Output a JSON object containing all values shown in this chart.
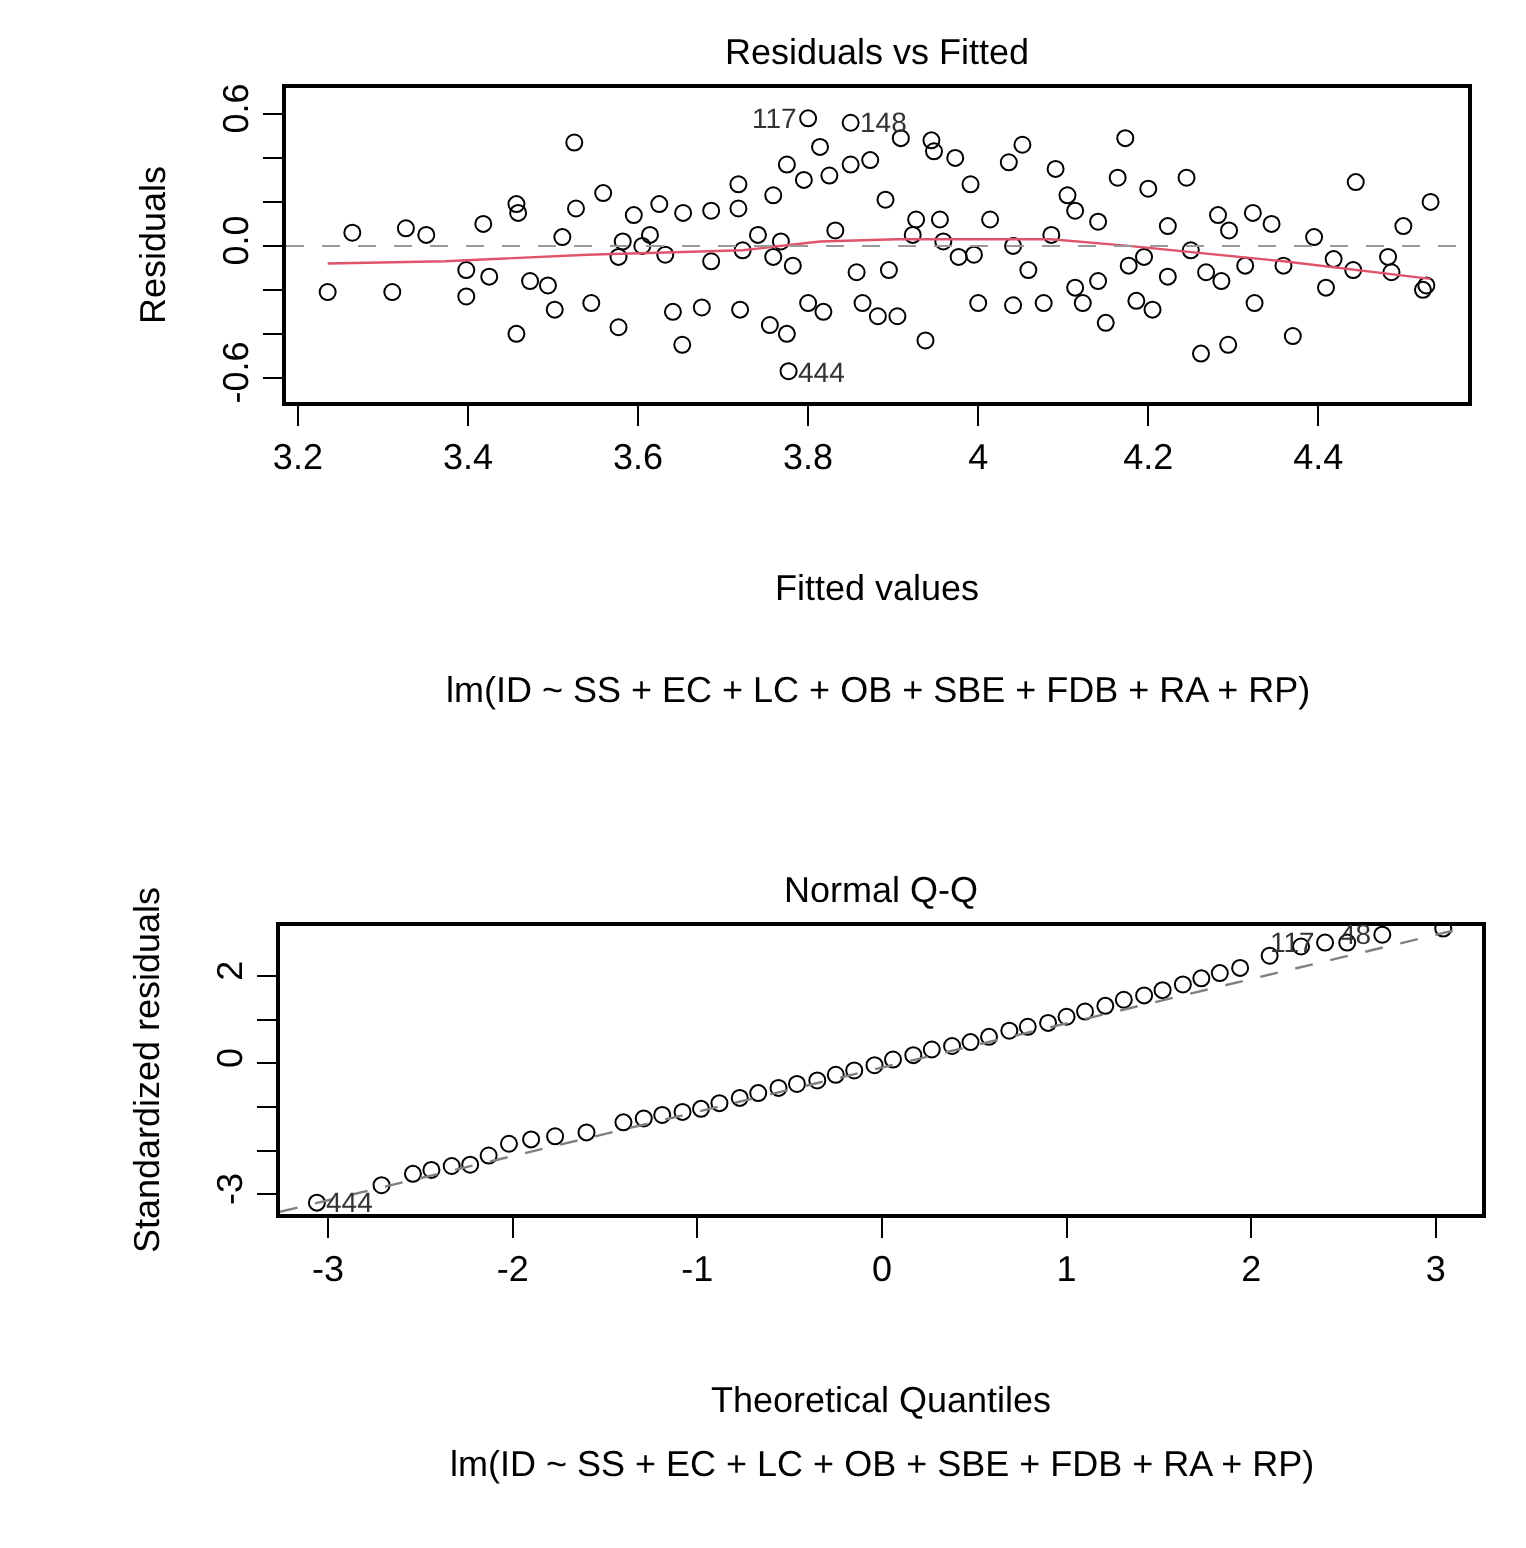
{
  "chart_data": [
    {
      "type": "scatter",
      "title": "Residuals vs Fitted",
      "xlabel": "Fitted values",
      "ylabel": "Residuals",
      "xlim": [
        3.186,
        4.576
      ],
      "ylim": [
        -0.71,
        0.718
      ],
      "xticks": [
        3.2,
        3.4,
        3.6,
        3.8,
        4.0,
        4.2,
        4.4
      ],
      "yticks": [
        {
          "value": -0.6,
          "label": "-0.6"
        },
        {
          "value": -0.4,
          "label": null
        },
        {
          "value": -0.2,
          "label": null
        },
        {
          "value": 0,
          "label": "0.0"
        },
        {
          "value": 0.2,
          "label": null
        },
        {
          "value": 0.4,
          "label": null
        },
        {
          "value": 0.6,
          "label": "0.6"
        }
      ],
      "grid": false,
      "series": [
        {
          "marker": "circle",
          "color": "#000000",
          "x": [
            3.235,
            3.264,
            3.311,
            3.327,
            3.351,
            3.398,
            3.398,
            3.418,
            3.425,
            3.457,
            3.457,
            3.459,
            3.473,
            3.494,
            3.502,
            3.511,
            3.525,
            3.527,
            3.545,
            3.559,
            3.577,
            3.582,
            3.595,
            3.614,
            3.625,
            3.641,
            3.652,
            3.653,
            3.675,
            3.686,
            3.718,
            3.72,
            3.718,
            3.741,
            3.755,
            3.759,
            3.775,
            3.775,
            3.777,
            3.782,
            3.795,
            3.8,
            3.814,
            3.818,
            3.825,
            3.832,
            3.85,
            3.857,
            3.864,
            3.873,
            3.882,
            3.891,
            3.895,
            3.905,
            3.909,
            3.927,
            3.938,
            3.945,
            3.948,
            3.955,
            3.973,
            3.977,
            3.991,
            4.0,
            4.014,
            4.036,
            4.041,
            4.052,
            4.059,
            4.077,
            4.091,
            4.105,
            4.114,
            4.123,
            4.141,
            4.15,
            4.164,
            4.173,
            4.177,
            4.186,
            4.2,
            4.205,
            4.223,
            4.245,
            4.262,
            4.268,
            4.282,
            4.294,
            4.295,
            4.325,
            4.323,
            4.345,
            4.359,
            4.37,
            4.395,
            4.409,
            4.418,
            4.441,
            4.444,
            4.482,
            4.486,
            4.5,
            4.527,
            4.532,
            4.523,
            3.8,
            3.85,
            3.577,
            3.605,
            3.632,
            3.686,
            3.723,
            3.759,
            3.768,
            3.923,
            3.959,
            3.995,
            4.041,
            4.086,
            4.114,
            4.141,
            4.195,
            4.223,
            4.25,
            4.286,
            4.314
          ],
          "values": [
            -0.21,
            0.06,
            -0.21,
            0.08,
            0.05,
            -0.23,
            -0.11,
            0.1,
            -0.14,
            -0.4,
            0.19,
            0.15,
            -0.16,
            -0.18,
            -0.29,
            0.04,
            0.47,
            0.17,
            -0.26,
            0.24,
            -0.37,
            0.02,
            0.14,
            0.05,
            0.19,
            -0.3,
            -0.45,
            0.15,
            -0.28,
            0.16,
            0.28,
            -0.29,
            0.17,
            0.05,
            -0.36,
            0.23,
            0.37,
            -0.4,
            -0.57,
            -0.09,
            0.3,
            -0.26,
            0.45,
            -0.3,
            0.32,
            0.07,
            0.37,
            -0.12,
            -0.26,
            0.39,
            -0.32,
            0.21,
            -0.11,
            -0.32,
            0.49,
            0.12,
            -0.43,
            0.48,
            0.43,
            0.12,
            0.4,
            -0.05,
            0.28,
            -0.26,
            0.12,
            0.38,
            -0.27,
            0.46,
            -0.11,
            -0.26,
            0.35,
            0.23,
            -0.19,
            -0.26,
            0.11,
            -0.35,
            0.31,
            0.49,
            -0.09,
            -0.25,
            0.26,
            -0.29,
            0.09,
            0.31,
            -0.49,
            -0.12,
            0.14,
            -0.45,
            0.07,
            -0.26,
            0.15,
            0.1,
            -0.09,
            -0.41,
            0.04,
            -0.19,
            -0.06,
            -0.11,
            0.29,
            -0.05,
            -0.12,
            0.09,
            -0.18,
            0.2,
            -0.2,
            0.58,
            0.56,
            -0.05,
            0,
            -0.04,
            -0.07,
            -0.02,
            -0.05,
            0.02,
            0.05,
            0.02,
            -0.04,
            0,
            0.05,
            0.16,
            -0.16,
            -0.05,
            -0.14,
            -0.02,
            -0.16,
            -0.09
          ]
        },
        {
          "type": "line",
          "marker": "none",
          "line_style": "solid",
          "color": "#df536b",
          "x": [
            3.235,
            3.373,
            3.541,
            3.723,
            3.814,
            3.905,
            4.086,
            4.177,
            4.359,
            4.532
          ],
          "values": [
            -0.08,
            -0.07,
            -0.04,
            -0.02,
            0.02,
            0.03,
            0.03,
            0,
            -0.07,
            -0.15
          ]
        }
      ],
      "ref_lines": [
        {
          "axis": "y",
          "value": 0,
          "color": "#999999",
          "line_style": "dashed"
        }
      ],
      "annotations": [
        {
          "text": "117",
          "x": 3.8,
          "y": 0.58
        },
        {
          "text": "148",
          "x": 3.85,
          "y": 0.56
        },
        {
          "text": "444",
          "x": 3.777,
          "y": -0.57
        },
        "lm(ID ~ SS + EC + LC + OB + SBE + FDB + RA + RP)"
      ]
    },
    {
      "type": "scatter",
      "title": "Normal Q-Q",
      "xlabel": "Theoretical Quantiles",
      "ylabel": "Standardized residuals",
      "xlim": [
        -3.26,
        3.25
      ],
      "ylim": [
        -3.45,
        3.15
      ],
      "xticks": [
        -3,
        -2,
        -1,
        0,
        1,
        2,
        3
      ],
      "yticks": [
        -3,
        {
          "value": -2,
          "label": null
        },
        {
          "value": -1,
          "label": null
        },
        0,
        {
          "value": 1,
          "label": null
        },
        2
      ],
      "grid": false,
      "series": [
        {
          "marker": "circle",
          "color": "#000000",
          "x": [
            -3.06,
            -2.71,
            -2.54,
            -2.44,
            -2.33,
            -2.23,
            -2.13,
            -2.02,
            -1.9,
            -1.77,
            -1.6,
            -1.4,
            -1.29,
            -1.19,
            -1.08,
            -0.98,
            -0.88,
            -0.77,
            -0.67,
            -0.56,
            -0.46,
            -0.35,
            -0.25,
            -0.15,
            -0.04,
            0.06,
            0.17,
            0.27,
            0.38,
            0.48,
            0.58,
            0.69,
            0.79,
            0.9,
            1.0,
            1.1,
            1.21,
            1.31,
            1.42,
            1.52,
            1.63,
            1.73,
            1.83,
            1.94,
            2.1,
            2.27,
            2.4,
            2.52,
            2.71,
            3.04
          ],
          "values": [
            -3.19,
            -2.79,
            -2.53,
            -2.44,
            -2.35,
            -2.32,
            -2.11,
            -1.84,
            -1.74,
            -1.67,
            -1.58,
            -1.35,
            -1.26,
            -1.18,
            -1.11,
            -1.04,
            -0.91,
            -0.79,
            -0.68,
            -0.56,
            -0.47,
            -0.39,
            -0.26,
            -0.16,
            -0.04,
            0.09,
            0.19,
            0.32,
            0.4,
            0.49,
            0.61,
            0.75,
            0.84,
            0.93,
            1.07,
            1.19,
            1.32,
            1.46,
            1.56,
            1.68,
            1.81,
            1.95,
            2.07,
            2.19,
            2.47,
            2.68,
            2.77,
            2.77,
            2.95,
            3.09
          ]
        },
        {
          "type": "line",
          "marker": "none",
          "line_style": "dashed",
          "color": "#808080",
          "x": [
            -3.26,
            3.15
          ],
          "values": [
            -3.4,
            3.1
          ]
        }
      ],
      "annotations": [
        {
          "text": "444",
          "x": -3.06,
          "y": -3.19
        },
        {
          "text": "117",
          "x": 2.4,
          "y": 2.77
        },
        {
          "text": "48",
          "x": 2.71,
          "y": 2.95
        },
        "lm(ID ~ SS + EC + LC + OB + SBE + FDB + RA + RP)"
      ]
    }
  ]
}
